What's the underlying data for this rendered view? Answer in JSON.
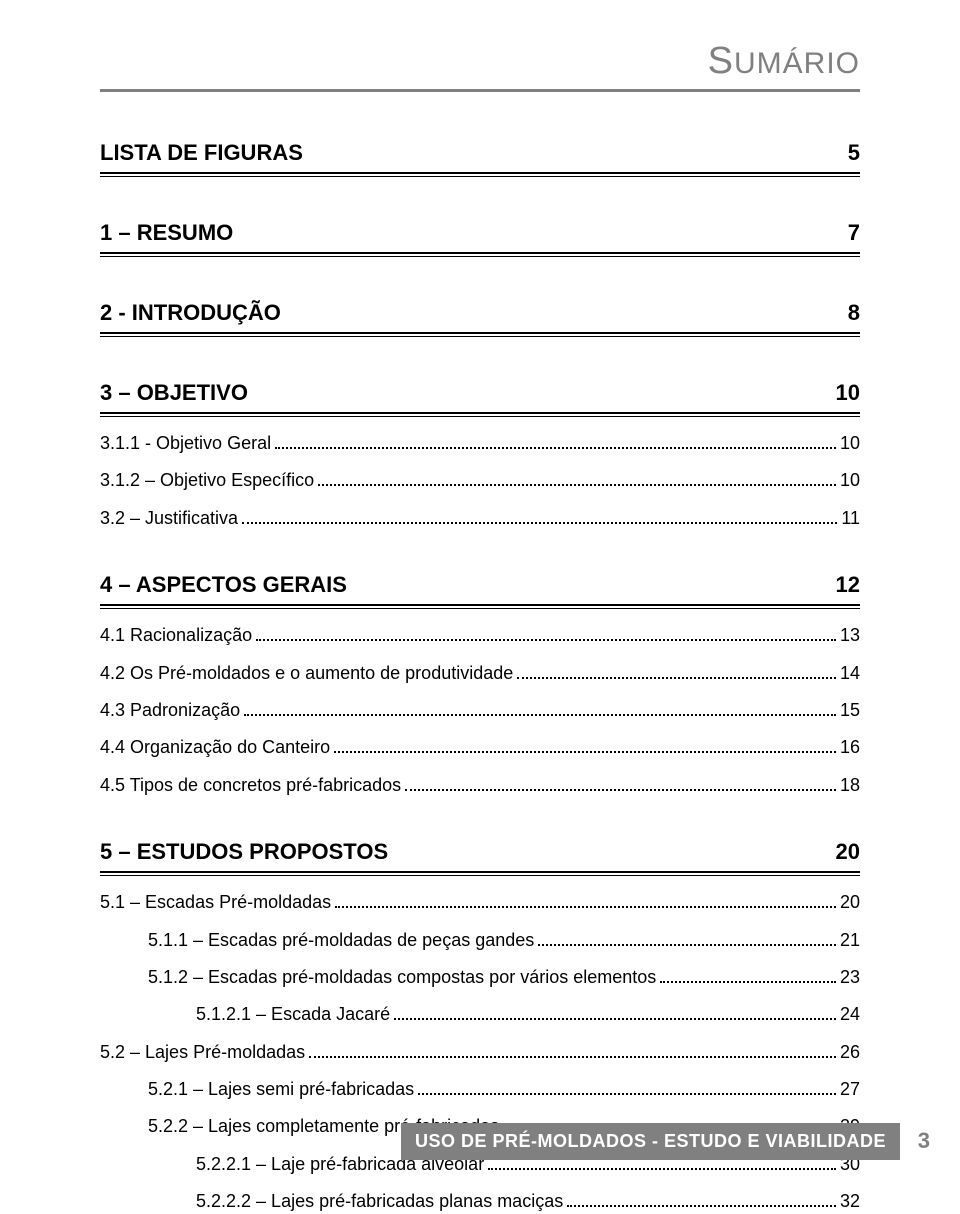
{
  "header": {
    "title_smallcaps_prefix": "S",
    "title_rest": "UMÁRIO"
  },
  "sections": [
    {
      "heading": "LISTA DE FIGURAS",
      "pageno": "5",
      "entries": []
    },
    {
      "heading": "1 – RESUMO",
      "pageno": "7",
      "entries": []
    },
    {
      "heading": "2 - INTRODUÇÃO",
      "pageno": "8",
      "entries": []
    },
    {
      "heading": "3 – OBJETIVO",
      "pageno": "10",
      "entries": [
        {
          "label": "3.1.1 - Objetivo Geral",
          "page": "10",
          "indent": 0
        },
        {
          "label": "3.1.2 – Objetivo Específico",
          "page": "10",
          "indent": 0
        },
        {
          "label": "3.2 – Justificativa",
          "page": "11",
          "indent": 0
        }
      ]
    },
    {
      "heading": "4 – ASPECTOS GERAIS",
      "pageno": "12",
      "entries": [
        {
          "label": "4.1 Racionalização",
          "page": "13",
          "indent": 0
        },
        {
          "label": "4.2 Os Pré-moldados e o aumento de produtividade",
          "page": "14",
          "indent": 0
        },
        {
          "label": "4.3 Padronização",
          "page": "15",
          "indent": 0
        },
        {
          "label": "4.4 Organização do Canteiro",
          "page": "16",
          "indent": 0
        },
        {
          "label": "4.5 Tipos de concretos pré-fabricados",
          "page": "18",
          "indent": 0
        }
      ]
    },
    {
      "heading": "5 – ESTUDOS PROPOSTOS",
      "pageno": "20",
      "entries": [
        {
          "label": "5.1 – Escadas Pré-moldadas",
          "page": "20",
          "indent": 0
        },
        {
          "label": "5.1.1 – Escadas pré-moldadas de peças gandes",
          "page": "21",
          "indent": 1
        },
        {
          "label": "5.1.2 – Escadas pré-moldadas compostas por vários elementos",
          "page": "23",
          "indent": 1
        },
        {
          "label": "5.1.2.1 – Escada Jacaré",
          "page": "24",
          "indent": 2
        },
        {
          "label": "5.2 – Lajes Pré-moldadas",
          "page": "26",
          "indent": 0
        },
        {
          "label": "5.2.1 – Lajes semi pré-fabricadas",
          "page": "27",
          "indent": 1
        },
        {
          "label": "5.2.2 – Lajes completamente pré-fabricadas",
          "page": "29",
          "indent": 1
        },
        {
          "label": "5.2.2.1 – Laje pré-fabricada alveolar",
          "page": "30",
          "indent": 2
        },
        {
          "label": "5.2.2.2 – Lajes pré-fabricadas planas maciças",
          "page": "32",
          "indent": 2
        }
      ]
    }
  ],
  "footer": {
    "text": "USO DE PRÉ-MOLDADOS - ESTUDO E VIABILIDADE",
    "pageno": "3"
  },
  "colors": {
    "gray": "#808080",
    "text": "#000000",
    "background": "#ffffff"
  }
}
